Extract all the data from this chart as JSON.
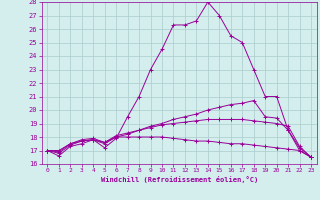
{
  "xlabel": "Windchill (Refroidissement éolien,°C)",
  "ylabel": "",
  "background_color": "#d4eeee",
  "grid_color": "#aacccc",
  "line_color": "#990099",
  "xlim": [
    -0.5,
    23.5
  ],
  "ylim": [
    16,
    28
  ],
  "xticks": [
    0,
    1,
    2,
    3,
    4,
    5,
    6,
    7,
    8,
    9,
    10,
    11,
    12,
    13,
    14,
    15,
    16,
    17,
    18,
    19,
    20,
    21,
    22,
    23
  ],
  "yticks": [
    16,
    17,
    18,
    19,
    20,
    21,
    22,
    23,
    24,
    25,
    26,
    27,
    28
  ],
  "series": [
    [
      17.0,
      16.6,
      17.3,
      17.5,
      17.8,
      17.2,
      17.9,
      19.5,
      21.0,
      23.0,
      24.5,
      26.3,
      26.3,
      26.6,
      28.0,
      27.0,
      25.5,
      25.0,
      23.0,
      21.0,
      21.0,
      18.5,
      17.0,
      16.5
    ],
    [
      17.0,
      16.8,
      17.4,
      17.7,
      17.8,
      17.5,
      18.0,
      18.2,
      18.5,
      18.8,
      19.0,
      19.3,
      19.5,
      19.7,
      20.0,
      20.2,
      20.4,
      20.5,
      20.7,
      19.5,
      19.4,
      18.5,
      17.2,
      16.5
    ],
    [
      17.0,
      16.9,
      17.5,
      17.8,
      17.9,
      17.6,
      18.1,
      18.3,
      18.5,
      18.7,
      18.9,
      19.0,
      19.1,
      19.2,
      19.3,
      19.3,
      19.3,
      19.3,
      19.2,
      19.1,
      19.0,
      18.8,
      17.3,
      16.5
    ],
    [
      17.0,
      17.0,
      17.5,
      17.7,
      17.8,
      17.6,
      18.0,
      18.0,
      18.0,
      18.0,
      18.0,
      17.9,
      17.8,
      17.7,
      17.7,
      17.6,
      17.5,
      17.5,
      17.4,
      17.3,
      17.2,
      17.1,
      17.0,
      16.5
    ]
  ]
}
